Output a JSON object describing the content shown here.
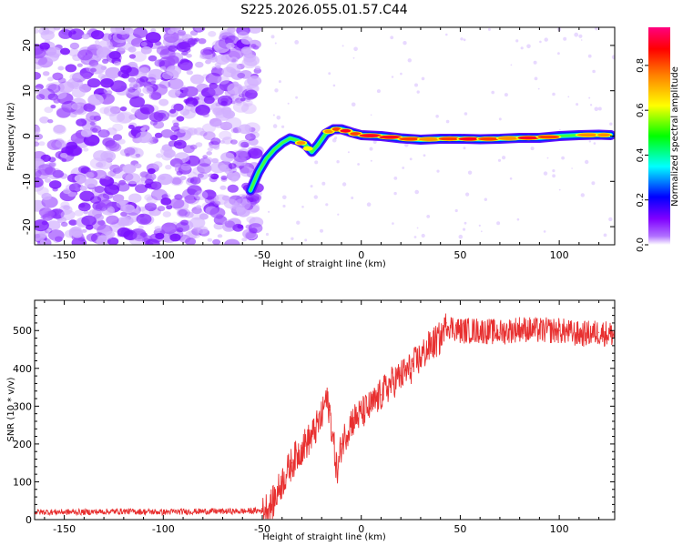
{
  "title": "S225.2026.055.01.57.C44",
  "chart_data": [
    {
      "type": "heatmap",
      "xlabel": "Height of straight line (km)",
      "ylabel": "Frequency (Hz)",
      "xlim": [
        -165,
        128
      ],
      "ylim": [
        -24,
        24
      ],
      "xticks": [
        -150,
        -100,
        -50,
        0,
        50,
        100
      ],
      "yticks": [
        -20,
        -10,
        0,
        10,
        20
      ],
      "colorbar": {
        "label": "Normalized spectral amplitude",
        "range": [
          0.0,
          0.97
        ],
        "ticks": [
          "0.0",
          "0.2",
          "0.4",
          "0.6",
          "0.8"
        ],
        "colors": [
          "#ffffff",
          "#8000ff",
          "#0000ff",
          "#00ffff",
          "#00ff00",
          "#ffff00",
          "#ff8000",
          "#ff0000",
          "#ff0080"
        ]
      },
      "ridge": {
        "x": [
          -56,
          -52,
          -48,
          -44,
          -40,
          -36,
          -32,
          -28,
          -25,
          -22,
          -18,
          -14,
          -10,
          -5,
          0,
          10,
          20,
          30,
          40,
          50,
          60,
          70,
          80,
          90,
          100,
          110,
          120,
          126
        ],
        "freq": [
          -12,
          -8,
          -5,
          -3,
          -1.5,
          -0.5,
          -1,
          -2,
          -3.5,
          -2,
          0.5,
          1.5,
          1.5,
          0.8,
          0.2,
          0,
          -0.5,
          -0.8,
          -0.6,
          -0.6,
          -0.7,
          -0.6,
          -0.4,
          -0.4,
          0,
          0.2,
          0.3,
          0.2
        ],
        "amplitude": [
          0.25,
          0.3,
          0.4,
          0.45,
          0.55,
          0.6,
          0.75,
          0.7,
          0.55,
          0.5,
          0.8,
          0.9,
          0.92,
          0.9,
          0.95,
          0.97,
          0.85,
          0.8,
          0.9,
          0.95,
          0.85,
          0.8,
          0.95,
          0.85,
          0.5,
          0.75,
          0.8,
          0.7
        ]
      },
      "noise_region_x": [
        -165,
        -52
      ]
    },
    {
      "type": "line",
      "xlabel": "Height of straight line (km)",
      "ylabel": "SNR (10 * v/v)",
      "xlim": [
        -165,
        128
      ],
      "ylim": [
        0,
        580
      ],
      "xticks": [
        -150,
        -100,
        -50,
        0,
        50,
        100
      ],
      "yticks": [
        0,
        100,
        200,
        300,
        400,
        500
      ],
      "color": "#e83030",
      "x": [
        -165,
        -140,
        -120,
        -100,
        -80,
        -60,
        -50,
        -45,
        -40,
        -35,
        -30,
        -25,
        -20,
        -18,
        -16,
        -14,
        -12,
        -10,
        -5,
        0,
        5,
        10,
        15,
        20,
        25,
        30,
        35,
        40,
        43,
        45,
        50,
        60,
        70,
        80,
        90,
        100,
        110,
        120,
        128
      ],
      "y": [
        20,
        20,
        22,
        20,
        22,
        22,
        24,
        40,
        100,
        150,
        190,
        220,
        270,
        320,
        290,
        200,
        120,
        200,
        260,
        280,
        300,
        330,
        360,
        380,
        400,
        430,
        460,
        480,
        520,
        510,
        500,
        500,
        495,
        505,
        500,
        500,
        490,
        495,
        490
      ]
    }
  ]
}
